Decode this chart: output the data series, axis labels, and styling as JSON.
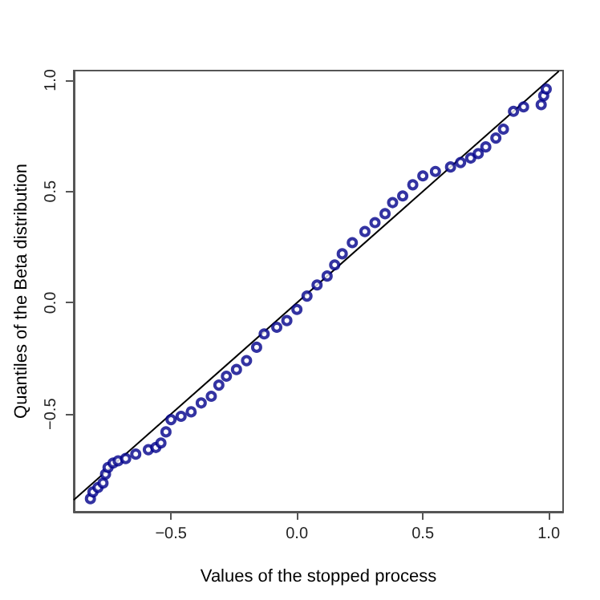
{
  "chart_data": {
    "type": "scatter",
    "xlabel": "Values of the stopped process",
    "ylabel": "Quantiles of the Beta distribution",
    "xlim": [
      -0.886,
      1.057
    ],
    "ylim": [
      -0.939,
      1.043
    ],
    "xticks": [
      {
        "value": -0.5,
        "label": "−0.5"
      },
      {
        "value": 0,
        "label": "0.0"
      },
      {
        "value": 0.5,
        "label": "0.5"
      },
      {
        "value": 1,
        "label": "1.0"
      }
    ],
    "yticks": [
      {
        "value": -0.5,
        "label": "−0.5"
      },
      {
        "value": 0,
        "label": "0.0"
      },
      {
        "value": 0.5,
        "label": "0.5"
      },
      {
        "value": 1,
        "label": "1.0"
      }
    ],
    "series": [
      {
        "color": "#00008b",
        "marker": "circle",
        "x": [
          -0.82,
          -0.81,
          -0.79,
          -0.77,
          -0.76,
          -0.75,
          -0.73,
          -0.71,
          -0.68,
          -0.64,
          -0.59,
          -0.56,
          -0.54,
          -0.52,
          -0.5,
          -0.46,
          -0.42,
          -0.38,
          -0.34,
          -0.31,
          -0.28,
          -0.24,
          -0.2,
          -0.16,
          -0.13,
          -0.08,
          -0.04,
          0.0,
          0.04,
          0.08,
          0.12,
          0.15,
          0.18,
          0.22,
          0.27,
          0.31,
          0.35,
          0.38,
          0.42,
          0.46,
          0.5,
          0.55,
          0.61,
          0.65,
          0.69,
          0.72,
          0.75,
          0.79,
          0.82,
          0.86,
          0.9,
          0.97,
          0.98,
          0.99
        ],
        "values": [
          -0.88,
          -0.85,
          -0.83,
          -0.81,
          -0.77,
          -0.74,
          -0.72,
          -0.71,
          -0.7,
          -0.68,
          -0.66,
          -0.65,
          -0.63,
          -0.58,
          -0.525,
          -0.51,
          -0.49,
          -0.45,
          -0.42,
          -0.37,
          -0.33,
          -0.3,
          -0.26,
          -0.2,
          -0.14,
          -0.11,
          -0.08,
          -0.03,
          0.03,
          0.08,
          0.12,
          0.17,
          0.22,
          0.27,
          0.32,
          0.36,
          0.4,
          0.45,
          0.48,
          0.53,
          0.57,
          0.59,
          0.61,
          0.63,
          0.65,
          0.67,
          0.7,
          0.74,
          0.78,
          0.86,
          0.88,
          0.89,
          0.93,
          0.96
        ]
      },
      {
        "type": "line",
        "marker": "none",
        "color": "#000000",
        "x": [
          -0.886,
          1.04
        ],
        "values": [
          -0.886,
          1.04
        ]
      }
    ]
  }
}
